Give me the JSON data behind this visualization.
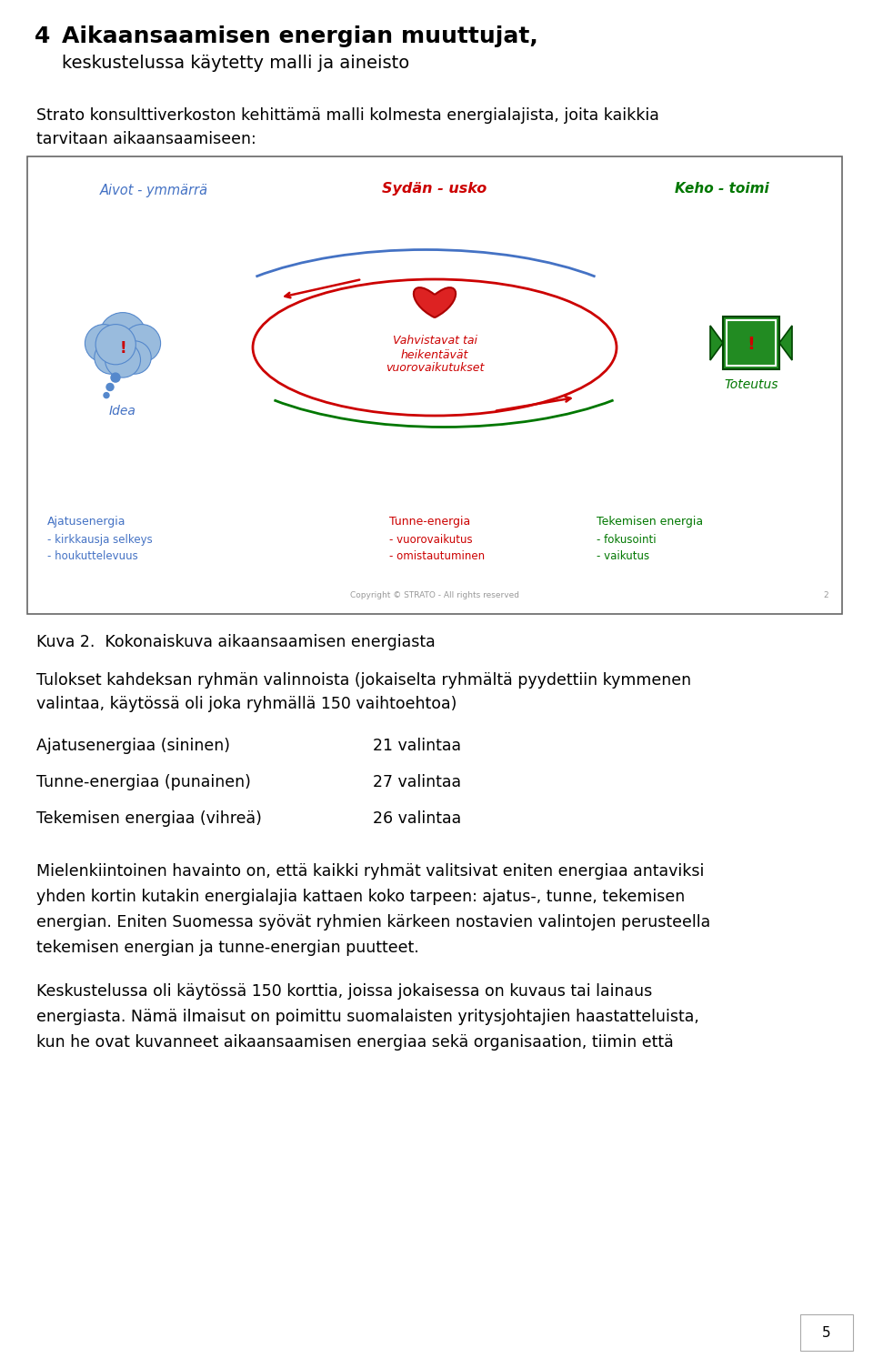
{
  "title_number": "4",
  "title_main": "Aikaansaamisen energian muuttujat,",
  "title_sub": "keskustelussa käytetty malli ja aineisto",
  "intro_text_1": "Strato konsulttiverkoston kehittämä malli kolmesta energialajista, joita kaikkia",
  "intro_text_2": "tarvitaan aikaansaamiseen:",
  "caption": "Kuva 2.  Kokonaiskuva aikaansaamisen energiasta",
  "results_intro_1": "Tulokset kahdeksan ryhmän valinnoista (jokaiselta ryhmältä pyydettiin kymmenen",
  "results_intro_2": "valintaa, käytössä oli joka ryhmällä 150 vaihtoehtoa)",
  "energy_items": [
    {
      "label": "Ajatusenergiaa (sininen)",
      "value": "21 valintaa"
    },
    {
      "label": "Tunne-energiaa (punainen)",
      "value": "27 valintaa"
    },
    {
      "label": "Tekemisen energiaa (vihreä)",
      "value": "26 valintaa"
    }
  ],
  "para1_lines": [
    "Mielenkiintoinen havainto on, että kaikki ryhmät valitsivat eniten energiaa antaviksi",
    "yhden kortin kutakin energialajia kattaen koko tarpeen: ajatus-, tunne, tekemisen",
    "energian. Eniten Suomessa syövät ryhmien kärkeen nostavien valintojen perusteella",
    "tekemisen energian ja tunne-energian puutteet."
  ],
  "para2_lines": [
    "Keskustelussa oli käytössä 150 korttia, joissa jokaisessa on kuvaus tai lainaus",
    "energiasta. Nämä ilmaisut on poimittu suomalaisten yritysjohtajien haastatteluista,",
    "kun he ovat kuvanneet aikaansaamisen energiaa sekä organisaation, tiimin että"
  ],
  "page_number": "5",
  "bg_color": "#ffffff",
  "text_color": "#000000",
  "blue_color": "#4472C4",
  "red_color": "#CC0000",
  "green_color": "#007700",
  "copyright": "Copyright © STRATO - All rights reserved",
  "slide_num": "2"
}
